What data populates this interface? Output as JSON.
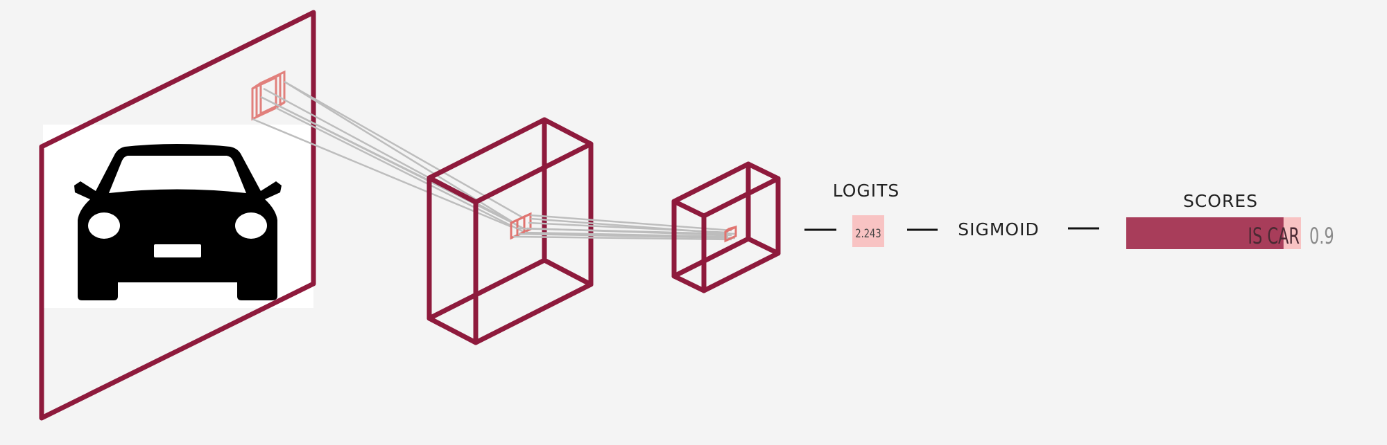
{
  "colors": {
    "background": "#f4f4f4",
    "frame": "#8e1a3c",
    "kernel": "#e07470",
    "connection": "#bdbdbd",
    "logit_box": "#f8c3c3",
    "score_fill": "#a83d5a",
    "score_track": "#f8c3c3",
    "car": "#000000"
  },
  "input_image": {
    "icon": "car-icon"
  },
  "logits": {
    "label": "LOGITS",
    "value": "2.243"
  },
  "activation": {
    "label": "SIGMOID"
  },
  "scores": {
    "label": "SCORES",
    "class_label": "IS CAR",
    "value": "0.9",
    "fill_fraction": 0.9
  }
}
